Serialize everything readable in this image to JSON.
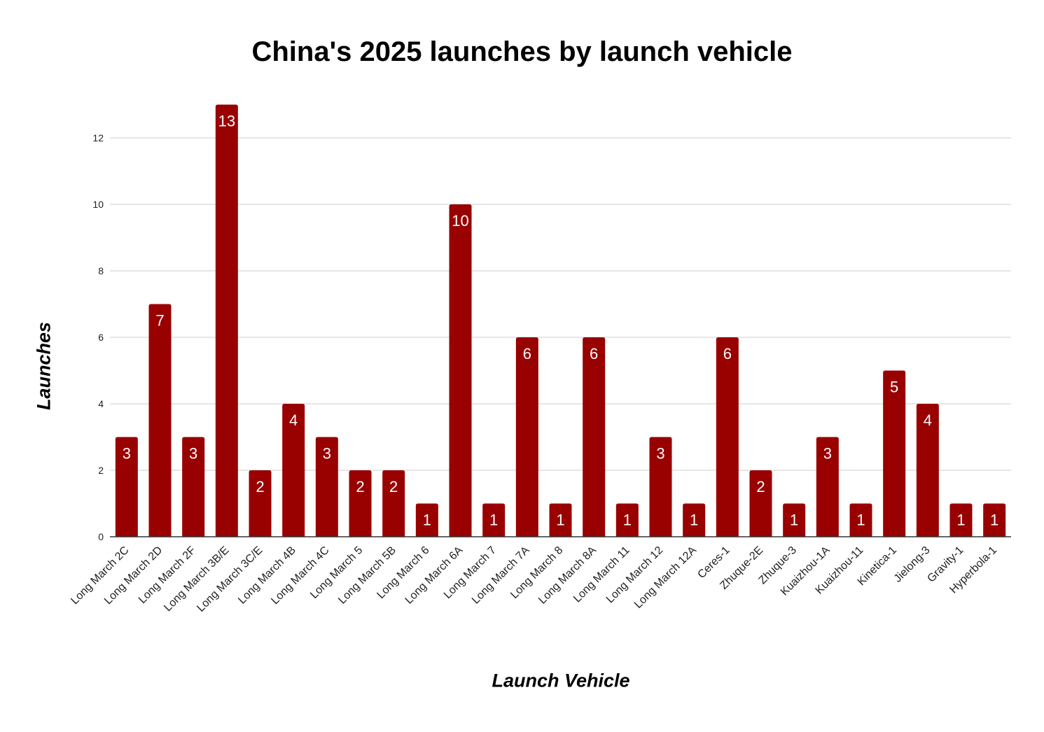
{
  "chart_data": {
    "type": "bar",
    "title": "China's 2025 launches by launch vehicle",
    "xlabel": "Launch Vehicle",
    "ylabel": "Launches",
    "ylim": [
      0,
      13
    ],
    "yticks": [
      0,
      2,
      4,
      6,
      8,
      10,
      12
    ],
    "grid": true,
    "bar_color": "#990000",
    "categories": [
      "Long March 2C",
      "Long March 2D",
      "Long March 2F",
      "Long March 3B/E",
      "Long March 3C/E",
      "Long March 4B",
      "Long March 4C",
      "Long March 5",
      "Long March 5B",
      "Long March 6",
      "Long March 6A",
      "Long March 7",
      "Long March 7A",
      "Long March 8",
      "Long March 8A",
      "Long March 11",
      "Long March 12",
      "Long March 12A",
      "Ceres-1",
      "Zhuque-2E",
      "Zhuque-3",
      "Kuaizhou-1A",
      "Kuaizhou-11",
      "Kinetica-1",
      "Jielong-3",
      "Gravity-1",
      "Hyperbola-1"
    ],
    "values": [
      3,
      7,
      3,
      13,
      2,
      4,
      3,
      2,
      2,
      1,
      10,
      1,
      6,
      1,
      6,
      1,
      3,
      1,
      6,
      2,
      1,
      3,
      1,
      5,
      4,
      1,
      1
    ]
  }
}
